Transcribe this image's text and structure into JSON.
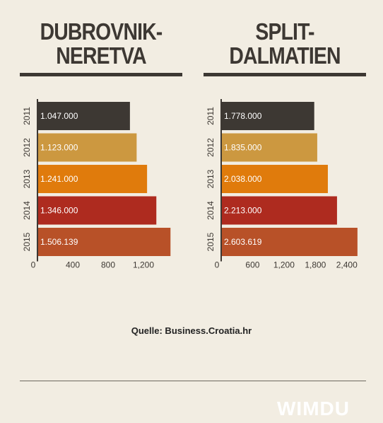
{
  "titles": {
    "left": [
      "DUBROVNIK-",
      "NERETVA"
    ],
    "right": [
      "SPLIT-",
      "DALMATIEN"
    ]
  },
  "source": "Quelle: Business.Croatia.hr",
  "logo": "WIMDU",
  "colors": {
    "background": "#f2ede2",
    "dark": "#3d3833",
    "2011": "#3d3833",
    "2012": "#cc9840",
    "2013": "#e07b0c",
    "2014": "#ae2b1f",
    "2015": "#b85128"
  },
  "chart_data": [
    {
      "type": "bar",
      "orientation": "horizontal",
      "title": "DUBROVNIK-NERETVA",
      "categories": [
        "2011",
        "2012",
        "2013",
        "2014",
        "2015"
      ],
      "values": [
        1047000,
        1123000,
        1241000,
        1346000,
        1506139
      ],
      "value_labels": [
        "1.047.000",
        "1.123.000",
        "1.241.000",
        "1.346.000",
        "1.506.139"
      ],
      "xticks": [
        0,
        400,
        800,
        1200
      ],
      "xtick_labels": [
        "0",
        "400",
        "800",
        "1,200"
      ],
      "xlim": [
        0,
        1600000
      ],
      "tick_unit": 1000
    },
    {
      "type": "bar",
      "orientation": "horizontal",
      "title": "SPLIT-DALMATIEN",
      "categories": [
        "2011",
        "2012",
        "2013",
        "2014",
        "2015"
      ],
      "values": [
        1778000,
        1835000,
        2038000,
        2213000,
        2603619
      ],
      "value_labels": [
        "1.778.000",
        "1.835.000",
        "2.038.000",
        "2.213.000",
        "2.603.619"
      ],
      "xticks": [
        0,
        600,
        1200,
        1800,
        2400
      ],
      "xtick_labels": [
        "0",
        "600",
        "1,200",
        "1,800",
        "2,400"
      ],
      "xlim": [
        0,
        2700000
      ],
      "tick_unit": 1000
    }
  ]
}
